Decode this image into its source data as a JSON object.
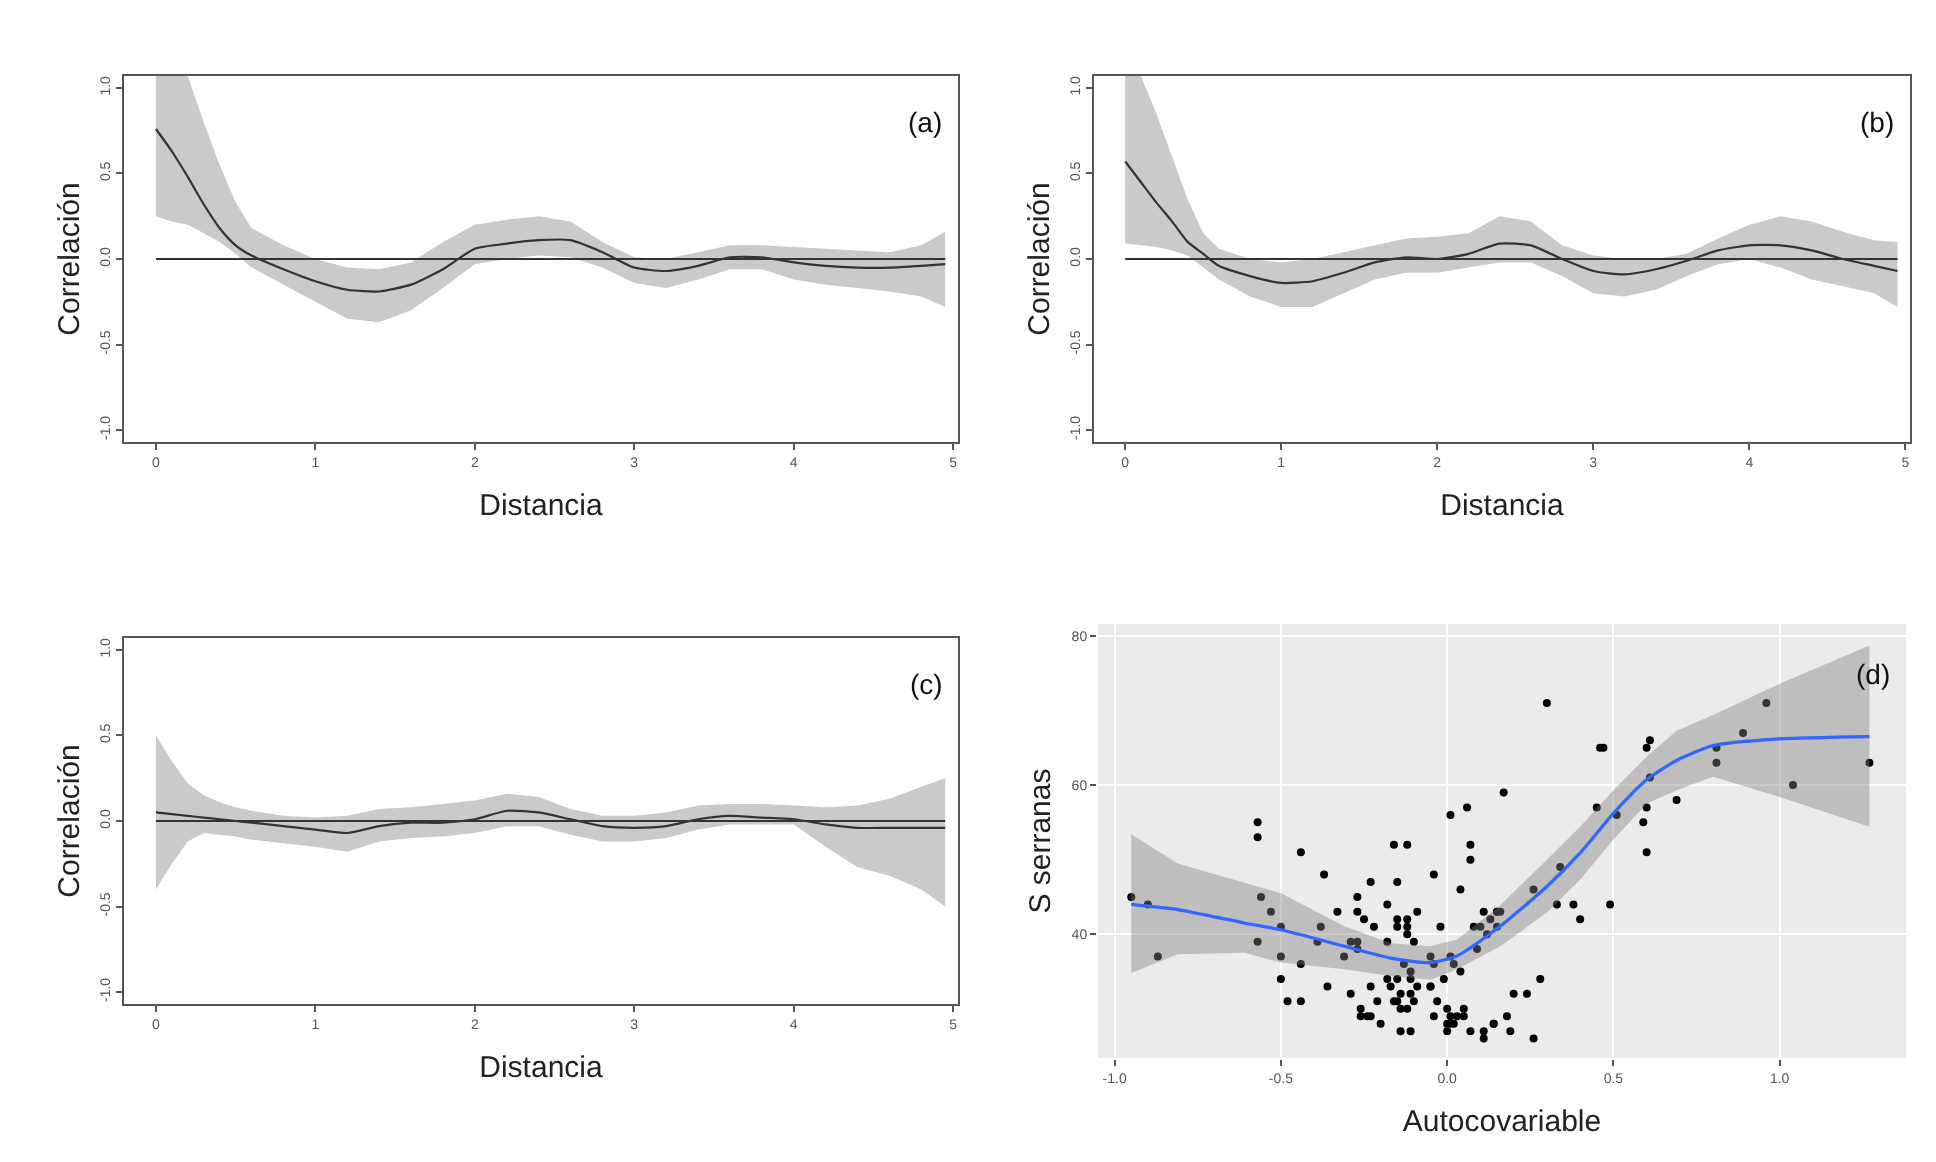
{
  "chart_data": [
    {
      "type": "line",
      "xlabel": "Distancia",
      "ylabel": "Correlación",
      "annotations": [
        "(a)"
      ],
      "grid": false,
      "line_style": "solid",
      "x": [
        0,
        0.1,
        0.2,
        0.3,
        0.4,
        0.5,
        0.6,
        0.8,
        1.0,
        1.2,
        1.4,
        1.6,
        1.8,
        2.0,
        2.2,
        2.4,
        2.6,
        2.8,
        3.0,
        3.2,
        3.4,
        3.6,
        3.8,
        4.0,
        4.2,
        4.4,
        4.6,
        4.8,
        4.95
      ],
      "series": [
        {
          "color": "#333333",
          "values": [
            0.76,
            0.63,
            0.48,
            0.32,
            0.18,
            0.08,
            0.02,
            -0.06,
            -0.13,
            -0.18,
            -0.19,
            -0.15,
            -0.06,
            0.06,
            0.09,
            0.11,
            0.11,
            0.04,
            -0.05,
            -0.07,
            -0.04,
            0.01,
            0.01,
            -0.02,
            -0.04,
            -0.05,
            -0.05,
            -0.04,
            -0.03
          ],
          "upper": [
            1.07,
            1.07,
            1.07,
            0.8,
            0.55,
            0.33,
            0.18,
            0.08,
            0.0,
            -0.05,
            -0.06,
            -0.02,
            0.1,
            0.2,
            0.23,
            0.25,
            0.22,
            0.1,
            0.01,
            0.0,
            0.04,
            0.08,
            0.08,
            0.07,
            0.06,
            0.05,
            0.04,
            0.08,
            0.16
          ],
          "lower": [
            0.25,
            0.22,
            0.2,
            0.15,
            0.1,
            0.03,
            -0.05,
            -0.15,
            -0.25,
            -0.35,
            -0.37,
            -0.3,
            -0.17,
            -0.03,
            0.0,
            0.02,
            0.01,
            -0.05,
            -0.14,
            -0.17,
            -0.12,
            -0.06,
            -0.06,
            -0.12,
            -0.15,
            -0.17,
            -0.19,
            -0.22,
            -0.28
          ]
        }
      ],
      "ref_lines": [
        {
          "axis": "y",
          "value": 0,
          "color": "#333333"
        }
      ],
      "xlim": [
        -0.2,
        5.03
      ],
      "ylim": [
        -1.07,
        1.07
      ],
      "xticks": [
        0,
        1,
        2,
        3,
        4,
        5
      ],
      "yticks": [
        {
          "value": -1.0,
          "label": "-1.0"
        },
        {
          "value": -0.5,
          "label": "-0.5"
        },
        {
          "value": 0.0,
          "label": "0.0"
        },
        {
          "value": 0.5,
          "label": "0.5"
        },
        {
          "value": 1.0,
          "label": "1.0"
        }
      ]
    },
    {
      "type": "line",
      "xlabel": "Distancia",
      "ylabel": "Correlación",
      "annotations": [
        "(b)"
      ],
      "grid": false,
      "line_style": "solid",
      "x": [
        0,
        0.1,
        0.2,
        0.3,
        0.4,
        0.5,
        0.6,
        0.8,
        1.0,
        1.2,
        1.4,
        1.6,
        1.8,
        2.0,
        2.2,
        2.4,
        2.6,
        2.8,
        3.0,
        3.2,
        3.4,
        3.6,
        3.8,
        4.0,
        4.2,
        4.4,
        4.6,
        4.8,
        4.95
      ],
      "series": [
        {
          "color": "#333333",
          "values": [
            0.57,
            0.45,
            0.33,
            0.22,
            0.1,
            0.03,
            -0.04,
            -0.1,
            -0.14,
            -0.13,
            -0.08,
            -0.02,
            0.01,
            0.0,
            0.03,
            0.09,
            0.08,
            0.0,
            -0.07,
            -0.09,
            -0.06,
            -0.01,
            0.05,
            0.08,
            0.08,
            0.05,
            0.0,
            -0.04,
            -0.07
          ],
          "upper": [
            1.07,
            1.07,
            0.85,
            0.6,
            0.35,
            0.15,
            0.06,
            0.0,
            -0.02,
            0.0,
            0.04,
            0.08,
            0.12,
            0.13,
            0.15,
            0.25,
            0.22,
            0.08,
            0.02,
            0.0,
            0.0,
            0.03,
            0.12,
            0.2,
            0.25,
            0.22,
            0.16,
            0.11,
            0.1
          ],
          "lower": [
            0.09,
            0.08,
            0.07,
            0.05,
            0.02,
            -0.05,
            -0.12,
            -0.22,
            -0.28,
            -0.28,
            -0.2,
            -0.12,
            -0.08,
            -0.08,
            -0.05,
            -0.02,
            -0.02,
            -0.1,
            -0.2,
            -0.22,
            -0.18,
            -0.1,
            -0.03,
            0.0,
            -0.05,
            -0.12,
            -0.16,
            -0.2,
            -0.28
          ]
        }
      ],
      "ref_lines": [
        {
          "axis": "y",
          "value": 0,
          "color": "#333333"
        }
      ],
      "xlim": [
        -0.2,
        5.03
      ],
      "ylim": [
        -1.07,
        1.07
      ],
      "xticks": [
        0,
        1,
        2,
        3,
        4,
        5
      ],
      "yticks": [
        {
          "value": -1.0,
          "label": "-1.0"
        },
        {
          "value": -0.5,
          "label": "-0.5"
        },
        {
          "value": 0.0,
          "label": "0.0"
        },
        {
          "value": 0.5,
          "label": "0.5"
        },
        {
          "value": 1.0,
          "label": "1.0"
        }
      ]
    },
    {
      "type": "line",
      "xlabel": "Distancia",
      "ylabel": "Correlación",
      "annotations": [
        "(c)"
      ],
      "grid": false,
      "line_style": "solid",
      "x": [
        0,
        0.1,
        0.2,
        0.3,
        0.4,
        0.5,
        0.6,
        0.8,
        1.0,
        1.2,
        1.4,
        1.6,
        1.8,
        2.0,
        2.2,
        2.4,
        2.6,
        2.8,
        3.0,
        3.2,
        3.4,
        3.6,
        3.8,
        4.0,
        4.2,
        4.4,
        4.6,
        4.8,
        4.95
      ],
      "series": [
        {
          "color": "#333333",
          "values": [
            0.05,
            0.04,
            0.03,
            0.02,
            0.01,
            0.0,
            -0.01,
            -0.03,
            -0.05,
            -0.07,
            -0.03,
            -0.01,
            -0.01,
            0.01,
            0.06,
            0.05,
            0.01,
            -0.03,
            -0.04,
            -0.03,
            0.01,
            0.03,
            0.02,
            0.01,
            -0.02,
            -0.04,
            -0.04,
            -0.04,
            -0.04
          ],
          "upper": [
            0.5,
            0.35,
            0.22,
            0.15,
            0.11,
            0.08,
            0.06,
            0.03,
            0.02,
            0.03,
            0.07,
            0.08,
            0.1,
            0.12,
            0.16,
            0.14,
            0.07,
            0.03,
            0.03,
            0.05,
            0.09,
            0.1,
            0.1,
            0.09,
            0.08,
            0.09,
            0.13,
            0.2,
            0.25
          ],
          "lower": [
            -0.4,
            -0.25,
            -0.12,
            -0.07,
            -0.08,
            -0.09,
            -0.11,
            -0.13,
            -0.15,
            -0.18,
            -0.12,
            -0.1,
            -0.09,
            -0.07,
            -0.03,
            -0.03,
            -0.08,
            -0.12,
            -0.12,
            -0.1,
            -0.05,
            -0.02,
            -0.02,
            -0.02,
            -0.15,
            -0.27,
            -0.32,
            -0.4,
            -0.5
          ]
        }
      ],
      "ref_lines": [
        {
          "axis": "y",
          "value": 0,
          "color": "#333333"
        }
      ],
      "xlim": [
        -0.2,
        5.03
      ],
      "ylim": [
        -1.07,
        1.07
      ],
      "xticks": [
        0,
        1,
        2,
        3,
        4,
        5
      ],
      "yticks": [
        {
          "value": -1.0,
          "label": "-1.0"
        },
        {
          "value": -0.5,
          "label": "-0.5"
        },
        {
          "value": 0.0,
          "label": "0.0"
        },
        {
          "value": 0.5,
          "label": "0.5"
        },
        {
          "value": 1.0,
          "label": "1.0"
        }
      ]
    },
    {
      "type": "scatter",
      "xlabel": "Autocovariable",
      "ylabel": "S serranas",
      "annotations": [
        "(d)"
      ],
      "grid": true,
      "series": [
        {
          "type": "scatter",
          "color": "#000000",
          "marker": "circle",
          "x": [
            -0.95,
            -0.9,
            -0.87,
            -0.57,
            -0.57,
            -0.57,
            -0.56,
            -0.53,
            -0.5,
            -0.5,
            -0.5,
            -0.48,
            -0.44,
            -0.44,
            -0.44,
            -0.39,
            -0.38,
            -0.37,
            -0.36,
            -0.33,
            -0.31,
            -0.29,
            -0.29,
            -0.27,
            -0.27,
            -0.27,
            -0.27,
            -0.26,
            -0.26,
            -0.25,
            -0.24,
            -0.23,
            -0.23,
            -0.23,
            -0.22,
            -0.21,
            -0.2,
            -0.18,
            -0.18,
            -0.18,
            -0.17,
            -0.16,
            -0.16,
            -0.15,
            -0.15,
            -0.15,
            -0.15,
            -0.15,
            -0.14,
            -0.14,
            -0.14,
            -0.13,
            -0.12,
            -0.12,
            -0.12,
            -0.12,
            -0.12,
            -0.11,
            -0.11,
            -0.11,
            -0.11,
            -0.1,
            -0.1,
            -0.09,
            -0.09,
            -0.05,
            -0.05,
            -0.05,
            -0.04,
            -0.04,
            -0.04,
            -0.03,
            -0.02,
            -0.01,
            0.0,
            0.0,
            0.0,
            0.01,
            0.01,
            0.01,
            0.01,
            0.02,
            0.02,
            0.03,
            0.04,
            0.04,
            0.05,
            0.05,
            0.06,
            0.07,
            0.07,
            0.07,
            0.08,
            0.09,
            0.1,
            0.11,
            0.11,
            0.11,
            0.12,
            0.13,
            0.14,
            0.14,
            0.15,
            0.15,
            0.15,
            0.16,
            0.17,
            0.18,
            0.19,
            0.2,
            0.24,
            0.26,
            0.26,
            0.28,
            0.3,
            0.33,
            0.34,
            0.38,
            0.4,
            0.45,
            0.46,
            0.47,
            0.49,
            0.51,
            0.59,
            0.6,
            0.6,
            0.6,
            0.61,
            0.61,
            0.69,
            0.81,
            0.81,
            0.89,
            0.96,
            1.04,
            1.27
          ],
          "values": [
            45,
            44,
            37,
            39,
            55,
            53,
            45,
            43,
            37,
            41,
            34,
            31,
            51,
            31,
            36,
            39,
            41,
            48,
            33,
            43,
            37,
            32,
            39,
            38,
            45,
            43,
            39,
            29,
            30,
            42,
            29,
            29,
            33,
            47,
            41,
            31,
            28,
            44,
            39,
            34,
            33,
            52,
            31,
            47,
            31,
            34,
            42,
            41,
            30,
            32,
            27,
            36,
            41,
            42,
            40,
            30,
            52,
            34,
            27,
            32,
            35,
            31,
            39,
            43,
            33,
            33,
            37,
            33,
            48,
            36,
            29,
            31,
            41,
            34,
            27,
            28,
            30,
            56,
            37,
            29,
            28,
            28,
            36,
            29,
            46,
            35,
            29,
            30,
            57,
            27,
            50,
            52,
            41,
            38,
            41,
            26,
            27,
            43,
            40,
            42,
            28,
            28,
            43,
            41,
            43,
            43,
            59,
            29,
            27,
            32,
            32,
            26,
            46,
            34,
            71,
            44,
            49,
            44,
            42,
            57,
            65,
            65,
            44,
            56,
            55,
            65,
            51,
            57,
            61,
            66,
            58,
            65,
            63,
            67,
            71,
            60,
            63
          ]
        },
        {
          "type": "line",
          "color": "#3366ff",
          "x": [
            -0.95,
            -0.81,
            -0.61,
            -0.5,
            -0.31,
            -0.17,
            -0.05,
            0.03,
            0.16,
            0.3,
            0.4,
            0.5,
            0.6,
            0.69,
            0.8,
            1.0,
            1.27
          ],
          "values": [
            44.0,
            43.3,
            41.5,
            40.6,
            38.4,
            36.8,
            36.2,
            37.1,
            41.1,
            46.4,
            50.9,
            56.2,
            60.7,
            63.3,
            65.3,
            66.2,
            66.5
          ],
          "upper": [
            53.4,
            49.5,
            46.9,
            45.5,
            41.1,
            38.8,
            38.4,
            39.3,
            43.9,
            50.0,
            54.4,
            59.3,
            63.8,
            67.3,
            69.4,
            73.6,
            78.7
          ],
          "lower": [
            34.8,
            37.3,
            37.5,
            36.2,
            35.3,
            34.4,
            33.9,
            35.3,
            38.4,
            42.9,
            47.3,
            52.7,
            57.5,
            59.3,
            61.1,
            58.4,
            54.4
          ]
        }
      ],
      "xlim": [
        -1.05,
        1.38
      ],
      "ylim": [
        23.4,
        81.6
      ],
      "xticks": [
        {
          "value": -1.0,
          "label": "-1.0"
        },
        {
          "value": -0.5,
          "label": "-0.5"
        },
        {
          "value": 0.0,
          "label": "0.0"
        },
        {
          "value": 0.5,
          "label": "0.5"
        },
        {
          "value": 1.0,
          "label": "1.0"
        }
      ],
      "yticks": [
        40,
        60,
        80
      ]
    }
  ]
}
